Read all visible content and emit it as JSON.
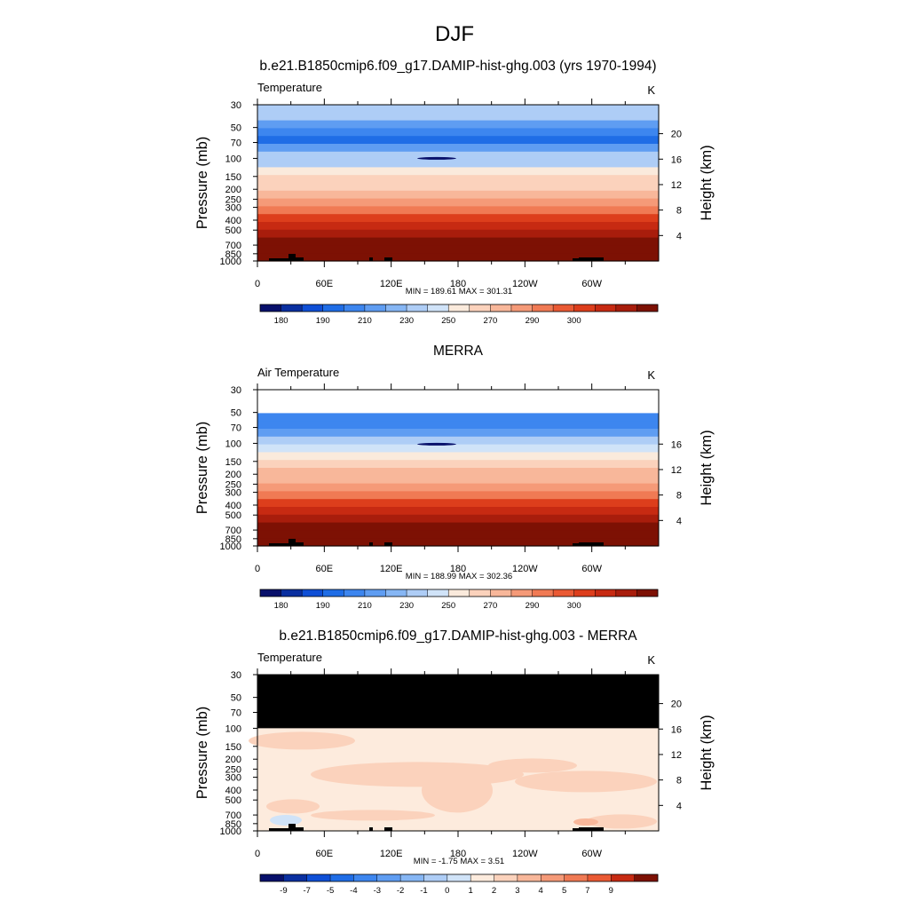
{
  "figure": {
    "title": "DJF"
  },
  "chart_data": [
    {
      "type": "heatmap",
      "title": "b.e21.B1850cmip6.f09_g17.DAMIP-hist-ghg.003 (yrs 1970-1994)",
      "left_label": "Temperature",
      "units": "K",
      "ylabel": "Pressure (mb)",
      "y2label": "Height (km)",
      "stats": "MIN = 189.61  MAX = 301.31",
      "x_ticks": [
        "0",
        "60E",
        "120E",
        "180",
        "120W",
        "60W"
      ],
      "y_ticks": [
        "30",
        "50",
        "70",
        "100",
        "150",
        "200",
        "250",
        "300",
        "400",
        "500",
        "700",
        "850",
        "1000"
      ],
      "height_ticks": [
        "4",
        "8",
        "12",
        "16",
        "20"
      ],
      "colorbar_labels": [
        "180",
        "190",
        "210",
        "230",
        "250",
        "270",
        "290",
        "300"
      ],
      "levels_from_top": [
        218,
        212,
        202,
        196,
        194,
        200,
        210,
        218,
        230,
        240,
        248,
        255,
        262,
        268,
        275,
        282,
        287,
        292,
        296,
        299
      ]
    },
    {
      "type": "heatmap",
      "title": "MERRA",
      "left_label": "Air Temperature",
      "units": "K",
      "ylabel": "Pressure (mb)",
      "y2label": "Height (km)",
      "stats": "MIN = 188.99  MAX = 302.36",
      "x_ticks": [
        "0",
        "60E",
        "120E",
        "180",
        "120W",
        "60W"
      ],
      "y_ticks": [
        "30",
        "50",
        "70",
        "100",
        "150",
        "200",
        "250",
        "300",
        "400",
        "500",
        "700",
        "850",
        "1000"
      ],
      "height_ticks": [
        "4",
        "8",
        "12",
        "16"
      ],
      "colorbar_labels": [
        "180",
        "190",
        "210",
        "230",
        "250",
        "270",
        "290",
        "300"
      ],
      "levels_from_top": [
        null,
        null,
        null,
        195,
        197,
        204,
        212,
        220,
        232,
        242,
        250,
        256,
        263,
        269,
        276,
        283,
        288,
        293,
        297,
        300
      ]
    },
    {
      "type": "heatmap",
      "title": "b.e21.B1850cmip6.f09_g17.DAMIP-hist-ghg.003 - MERRA",
      "left_label": "Temperature",
      "units": "K",
      "ylabel": "Pressure (mb)",
      "y2label": "Height (km)",
      "stats": "MIN = -1.75  MAX =   3.51",
      "x_ticks": [
        "0",
        "60E",
        "120E",
        "180",
        "120W",
        "60W"
      ],
      "y_ticks": [
        "30",
        "50",
        "70",
        "100",
        "150",
        "200",
        "250",
        "300",
        "400",
        "500",
        "700",
        "850",
        "1000"
      ],
      "height_ticks": [
        "4",
        "8",
        "12",
        "16",
        "20"
      ],
      "colorbar_labels": [
        "-9",
        "-7",
        "-5",
        "-4",
        "-3",
        "-2",
        "-1",
        "0",
        "1",
        "2",
        "3",
        "4",
        "5",
        "7",
        "9"
      ]
    }
  ]
}
